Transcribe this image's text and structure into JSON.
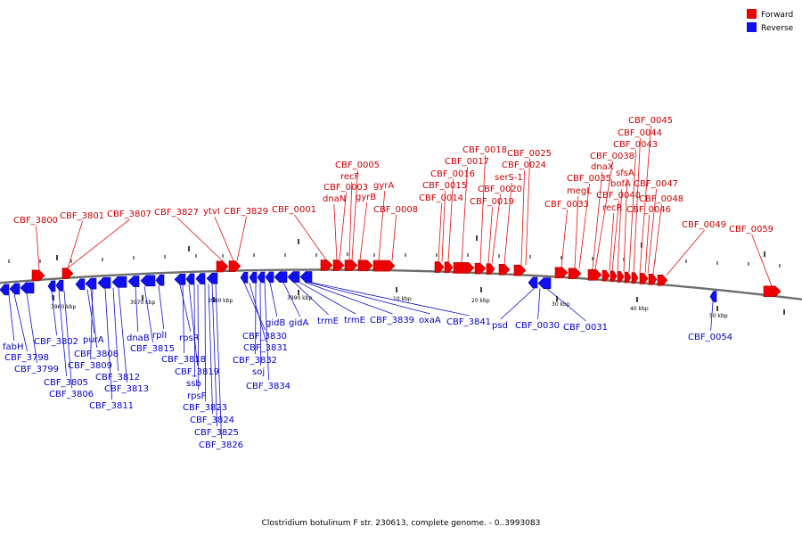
{
  "legend": [
    {
      "label": "Forward",
      "color": "#ee0000"
    },
    {
      "label": "Reverse",
      "color": "#1010ee"
    }
  ],
  "caption": "Clostridium botulinum F str. 230613, complete genome. - 0..3993083",
  "scale_labels": [
    "3960 kbp",
    "3970 kbp",
    "3980 kbp",
    "3990 kbp",
    "10 kbp",
    "20 kbp",
    "30 kbp",
    "40 kbp",
    "50 kbp"
  ],
  "forward_genes": [
    "CBF_3800",
    "CBF_3801",
    "CBF_3807",
    "CBF_3827",
    "ytvI",
    "CBF_3829",
    "CBF_0001",
    "dnaN",
    "CBF_0003",
    "recF",
    "CBF_0005",
    "gyrB",
    "gyrA",
    "CBF_0008",
    "CBF_0014",
    "CBF_0015",
    "CBF_0016",
    "CBF_0017",
    "CBF_0018",
    "CBF_0019",
    "CBF_0020",
    "serS-1",
    "CBF_0024",
    "CBF_0025",
    "CBF_0033",
    "megL",
    "CBF_0035",
    "dnaX",
    "CBF_0038",
    "recR",
    "CBF_0040",
    "bofA",
    "sfsA",
    "CBF_0043",
    "CBF_0044",
    "CBF_0045",
    "CBF_0046",
    "CBF_0047",
    "CBF_0048",
    "CBF_0049",
    "CBF_0059"
  ],
  "reverse_genes": [
    "fabH",
    "CBF_3798",
    "CBF_3799",
    "CBF_3802",
    "CBF_3805",
    "CBF_3806",
    "purA",
    "CBF_3808",
    "CBF_3809",
    "CBF_3811",
    "CBF_3812",
    "CBF_3813",
    "dnaB",
    "CBF_3815",
    "rplI",
    "rpsR",
    "CBF_3818",
    "CBF_3819",
    "ssb",
    "rpsF",
    "CBF_3823",
    "CBF_3824",
    "CBF_3825",
    "CBF_3826",
    "CBF_3830",
    "CBF_3831",
    "CBF_3832",
    "soj",
    "CBF_3834",
    "gidB",
    "gidA",
    "trmE",
    "trmE",
    "CBF_3839",
    "oxaA",
    "CBF_3841",
    "psd",
    "CBF_0030",
    "CBF_0031",
    "CBF_0054"
  ]
}
